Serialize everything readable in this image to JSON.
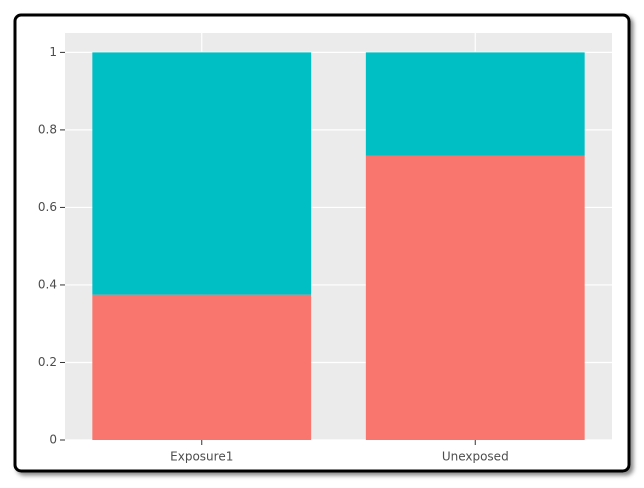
{
  "chart_data": {
    "type": "stacked-bar",
    "categories": [
      "Exposure1",
      "Unexposed"
    ],
    "series": [
      {
        "color": "#F8766D",
        "values": [
          0.375,
          0.734
        ]
      },
      {
        "color": "#00BFC4",
        "values": [
          0.625,
          0.266
        ]
      }
    ],
    "ylim": [
      0,
      1.05
    ],
    "yticks": [
      0,
      0.2,
      0.4,
      0.6,
      0.8,
      1
    ],
    "grid": true
  }
}
